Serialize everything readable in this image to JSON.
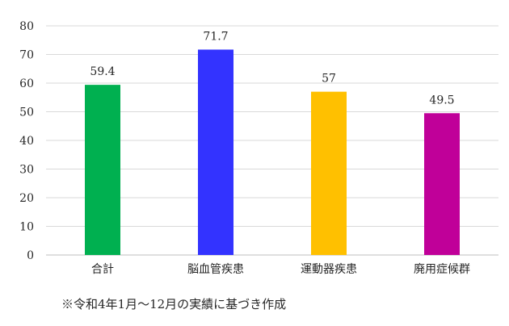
{
  "chart_data": {
    "type": "bar",
    "categories": [
      "合計",
      "脳血管疾患",
      "運動器疾患",
      "廃用症候群"
    ],
    "values": [
      59.4,
      71.7,
      57,
      49.5
    ],
    "value_labels": [
      "59.4",
      "71.7",
      "57",
      "49.5"
    ],
    "colors": [
      "#00b050",
      "#3333ff",
      "#ffc000",
      "#c00099"
    ],
    "ylim": [
      0,
      80
    ],
    "yticks": [
      0,
      10,
      20,
      30,
      40,
      50,
      60,
      70,
      80
    ],
    "grid": true,
    "legend": "none"
  },
  "footnote": "※令和4年1月～12月の実績に基づき作成"
}
